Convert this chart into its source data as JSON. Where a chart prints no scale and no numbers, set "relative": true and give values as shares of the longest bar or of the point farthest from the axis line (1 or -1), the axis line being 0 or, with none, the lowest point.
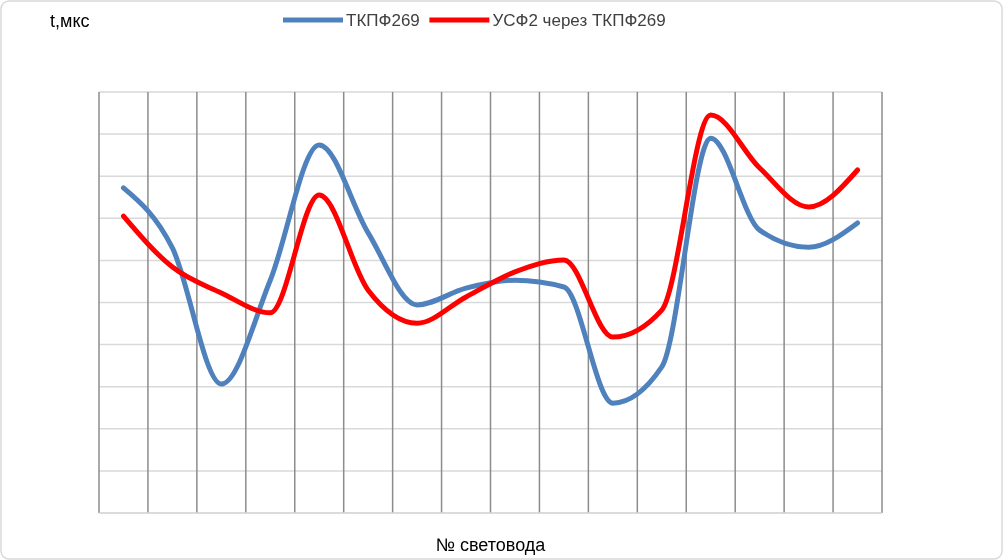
{
  "chart_data": {
    "type": "line",
    "ylabel": "t,мкс",
    "xlabel": "№ световода",
    "relative": true,
    "grid": true,
    "legend": "top",
    "line_style": "solid",
    "marker": "none",
    "categories": [
      null,
      null,
      null,
      null,
      null,
      null,
      null,
      null,
      null,
      null,
      null,
      null,
      null,
      null,
      null,
      null
    ],
    "series": [
      {
        "name": "ТКПФ269",
        "color": "#4f81bd",
        "values": [
          0.817,
          0.666,
          0.324,
          0.585,
          0.925,
          0.704,
          0.523,
          0.565,
          0.585,
          0.568,
          0.276,
          0.367,
          0.942,
          0.711,
          0.668,
          0.729
        ]
      },
      {
        "name": "УСФ2 через ТКПФ269",
        "color": "#ff0000",
        "values": [
          0.746,
          0.618,
          0.553,
          0.503,
          0.799,
          0.56,
          0.477,
          0.543,
          0.606,
          0.636,
          0.442,
          0.51,
          1,
          0.867,
          0.769,
          0.862
        ]
      }
    ]
  }
}
